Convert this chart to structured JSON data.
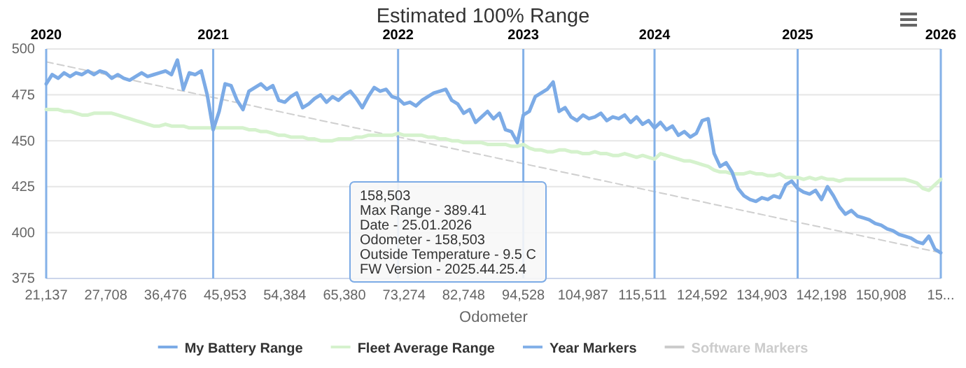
{
  "chart_data": {
    "type": "line",
    "title": "Estimated 100% Range",
    "xlabel": "Odometer",
    "categories": [
      "21,137",
      null,
      null,
      null,
      null,
      null,
      null,
      null,
      null,
      null,
      "27,708",
      null,
      null,
      null,
      null,
      null,
      null,
      null,
      null,
      null,
      "36,476",
      null,
      null,
      null,
      null,
      null,
      null,
      null,
      null,
      null,
      "45,953",
      null,
      null,
      null,
      null,
      null,
      null,
      null,
      null,
      null,
      "54,384",
      null,
      null,
      null,
      null,
      null,
      null,
      null,
      null,
      null,
      "65,380",
      null,
      null,
      null,
      null,
      null,
      null,
      null,
      null,
      null,
      "73,274",
      null,
      null,
      null,
      null,
      null,
      null,
      null,
      null,
      null,
      "82,748",
      null,
      null,
      null,
      null,
      null,
      null,
      null,
      null,
      null,
      "94,528",
      null,
      null,
      null,
      null,
      null,
      null,
      null,
      null,
      null,
      "104,987",
      null,
      null,
      null,
      null,
      null,
      null,
      null,
      null,
      null,
      "115,511",
      null,
      null,
      null,
      null,
      null,
      null,
      null,
      null,
      null,
      "124,592",
      null,
      null,
      null,
      null,
      null,
      null,
      null,
      null,
      null,
      "134,903",
      null,
      null,
      null,
      null,
      null,
      null,
      null,
      null,
      null,
      "142,198",
      null,
      null,
      null,
      null,
      null,
      null,
      null,
      null,
      null,
      "150,908",
      null,
      null,
      null,
      null,
      null,
      null,
      null,
      null,
      null,
      "15..."
    ],
    "ylim": [
      375,
      500
    ],
    "yticks": [
      375,
      400,
      425,
      450,
      475,
      500
    ],
    "grid": "y",
    "legend": "bottom",
    "series": [
      {
        "name": "My Battery Range",
        "color": "#7cabe6",
        "values": [
          481,
          486,
          484,
          487,
          485,
          487,
          486,
          488,
          486,
          488,
          487,
          484,
          486,
          484,
          483,
          485,
          487,
          485,
          486,
          487,
          488,
          486,
          494,
          478,
          487,
          486,
          488,
          475,
          456,
          466,
          481,
          480,
          472,
          467,
          477,
          479,
          481,
          478,
          480,
          472,
          471,
          474,
          476,
          468,
          470,
          473,
          475,
          471,
          474,
          472,
          475,
          477,
          473,
          468,
          474,
          479,
          477,
          478,
          474,
          473,
          470,
          471,
          469,
          472,
          474,
          476,
          477,
          478,
          472,
          470,
          465,
          467,
          460,
          463,
          466,
          462,
          465,
          456,
          455,
          449,
          464,
          466,
          474,
          476,
          478,
          482,
          466,
          468,
          463,
          461,
          464,
          462,
          463,
          465,
          461,
          463,
          462,
          464,
          460,
          463,
          459,
          461,
          457,
          460,
          456,
          458,
          453,
          455,
          452,
          454,
          461,
          462,
          443,
          436,
          438,
          433,
          424,
          420,
          418,
          417,
          419,
          418,
          420,
          419,
          426,
          428,
          424,
          422,
          421,
          423,
          418,
          425,
          420,
          414,
          410,
          412,
          409,
          408,
          407,
          405,
          404,
          402,
          401,
          399,
          398,
          397,
          395,
          394,
          398,
          391,
          389
        ]
      },
      {
        "name": "Fleet Average Range",
        "color": "#d5f2cd",
        "values": [
          467,
          467,
          467,
          466,
          466,
          465,
          464,
          464,
          465,
          465,
          465,
          465,
          464,
          463,
          462,
          461,
          460,
          459,
          458,
          458,
          459,
          458,
          458,
          458,
          457,
          457,
          457,
          457,
          457,
          457,
          457,
          457,
          457,
          457,
          456,
          456,
          455,
          455,
          454,
          453,
          453,
          452,
          452,
          452,
          451,
          451,
          450,
          450,
          450,
          451,
          451,
          451,
          452,
          452,
          453,
          453,
          453,
          453,
          453,
          454,
          453,
          453,
          453,
          453,
          452,
          452,
          451,
          451,
          450,
          450,
          449,
          449,
          449,
          449,
          448,
          448,
          448,
          448,
          447,
          447,
          448,
          446,
          445,
          445,
          444,
          444,
          445,
          445,
          444,
          444,
          443,
          443,
          444,
          443,
          443,
          442,
          442,
          443,
          442,
          441,
          442,
          441,
          440,
          443,
          442,
          441,
          440,
          439,
          439,
          438,
          437,
          436,
          434,
          433,
          433,
          432,
          432,
          432,
          433,
          432,
          432,
          431,
          431,
          432,
          430,
          430,
          430,
          429,
          430,
          429,
          430,
          429,
          429,
          428,
          429,
          429,
          429,
          429,
          429,
          429,
          429,
          429,
          429,
          429,
          429,
          428,
          427,
          424,
          423,
          426,
          429
        ]
      },
      {
        "name": "Year Markers",
        "color": "#84b1e8",
        "values": [
          500,
          null,
          null,
          null,
          null,
          null,
          null,
          null,
          null,
          null,
          null,
          null,
          null,
          null,
          null,
          null,
          null,
          null,
          null,
          null,
          null,
          null,
          null,
          null,
          null,
          null,
          null,
          null,
          500,
          null,
          null,
          null,
          null,
          null,
          null,
          null,
          null,
          null,
          null,
          null,
          null,
          null,
          null,
          null,
          null,
          null,
          null,
          null,
          null,
          null,
          null,
          null,
          null,
          null,
          null,
          null,
          null,
          null,
          null,
          500,
          null,
          null,
          null,
          null,
          null,
          null,
          null,
          null,
          null,
          null,
          null,
          null,
          null,
          null,
          null,
          null,
          null,
          null,
          null,
          null,
          500,
          null,
          null,
          null,
          null,
          null,
          null,
          null,
          null,
          null,
          null,
          null,
          null,
          null,
          null,
          null,
          null,
          null,
          null,
          null,
          null,
          null,
          500,
          null,
          null,
          null,
          null,
          null,
          null,
          null,
          null,
          null,
          null,
          null,
          null,
          null,
          null,
          null,
          null,
          null,
          null,
          null,
          null,
          null,
          null,
          null,
          500,
          null,
          null,
          null,
          null,
          null,
          null,
          null,
          null,
          null,
          null,
          null,
          null,
          null,
          null,
          null,
          null,
          null,
          null,
          null,
          null,
          null,
          null,
          null,
          500
        ],
        "type": "bar"
      },
      {
        "name": "Software Markers",
        "color": "#cccccc",
        "values": [
          null,
          null,
          null,
          null,
          null,
          null,
          null,
          null,
          null,
          null,
          null,
          null,
          null,
          null,
          null,
          null,
          null,
          null,
          null,
          null,
          null,
          null,
          null,
          null,
          null,
          null,
          null,
          null,
          null,
          null,
          null,
          null,
          null,
          null,
          null,
          null,
          null,
          null,
          null,
          null,
          null,
          null,
          null,
          null,
          null,
          null,
          null,
          null,
          null,
          null,
          null,
          null,
          null,
          null,
          null,
          null,
          null,
          null,
          null,
          null,
          null,
          null,
          null,
          null,
          null,
          null,
          null,
          null,
          null,
          null,
          null,
          null,
          null,
          null,
          null,
          null,
          null,
          null,
          null,
          null,
          null,
          null,
          null,
          null,
          null,
          null,
          null,
          null,
          null,
          null,
          null,
          null,
          null,
          null,
          null,
          null,
          null,
          null,
          null,
          null,
          null,
          null,
          null,
          null,
          null,
          null,
          null,
          null,
          null,
          null,
          null,
          null,
          null,
          null,
          null,
          null,
          null,
          null,
          null,
          null,
          null,
          null,
          null,
          null,
          null,
          null,
          null,
          null,
          null,
          null,
          null,
          null,
          null,
          null,
          null,
          null,
          null,
          null,
          null,
          null,
          null,
          null,
          null,
          null,
          null,
          null,
          null,
          null,
          null,
          null,
          null
        ]
      },
      {
        "type": "line",
        "color": "#cfcfcf",
        "line_style": "dashed",
        "values": [
          493,
          null,
          null,
          null,
          null,
          null,
          null,
          null,
          null,
          null,
          null,
          null,
          null,
          null,
          null,
          null,
          null,
          null,
          null,
          null,
          null,
          null,
          null,
          null,
          null,
          null,
          null,
          null,
          null,
          null,
          null,
          null,
          null,
          null,
          null,
          null,
          null,
          null,
          null,
          null,
          null,
          null,
          null,
          null,
          null,
          null,
          null,
          null,
          null,
          null,
          null,
          null,
          null,
          null,
          null,
          null,
          null,
          null,
          null,
          null,
          null,
          null,
          null,
          null,
          null,
          null,
          null,
          null,
          null,
          null,
          null,
          null,
          null,
          null,
          null,
          null,
          null,
          null,
          null,
          null,
          null,
          null,
          null,
          null,
          null,
          null,
          null,
          null,
          null,
          null,
          null,
          null,
          null,
          null,
          null,
          null,
          null,
          null,
          null,
          null,
          null,
          null,
          null,
          null,
          null,
          null,
          null,
          null,
          null,
          null,
          null,
          null,
          null,
          null,
          null,
          null,
          null,
          null,
          null,
          null,
          null,
          null,
          null,
          null,
          null,
          null,
          null,
          null,
          null,
          null,
          null,
          null,
          null,
          null,
          null,
          null,
          null,
          null,
          null,
          null,
          null,
          null,
          null,
          null,
          null,
          null,
          null,
          null,
          null,
          null,
          389
        ]
      }
    ],
    "annotations": [
      "2020",
      "2021",
      "2022",
      "2023",
      "2024",
      "2025",
      "2026",
      "158,503\nMax Range - 389.41\nDate - 25.01.2026\nOdometer - 158,503\nOutside Temperature - 9.5 C\nFW Version - 2025.44.25.4"
    ]
  }
}
